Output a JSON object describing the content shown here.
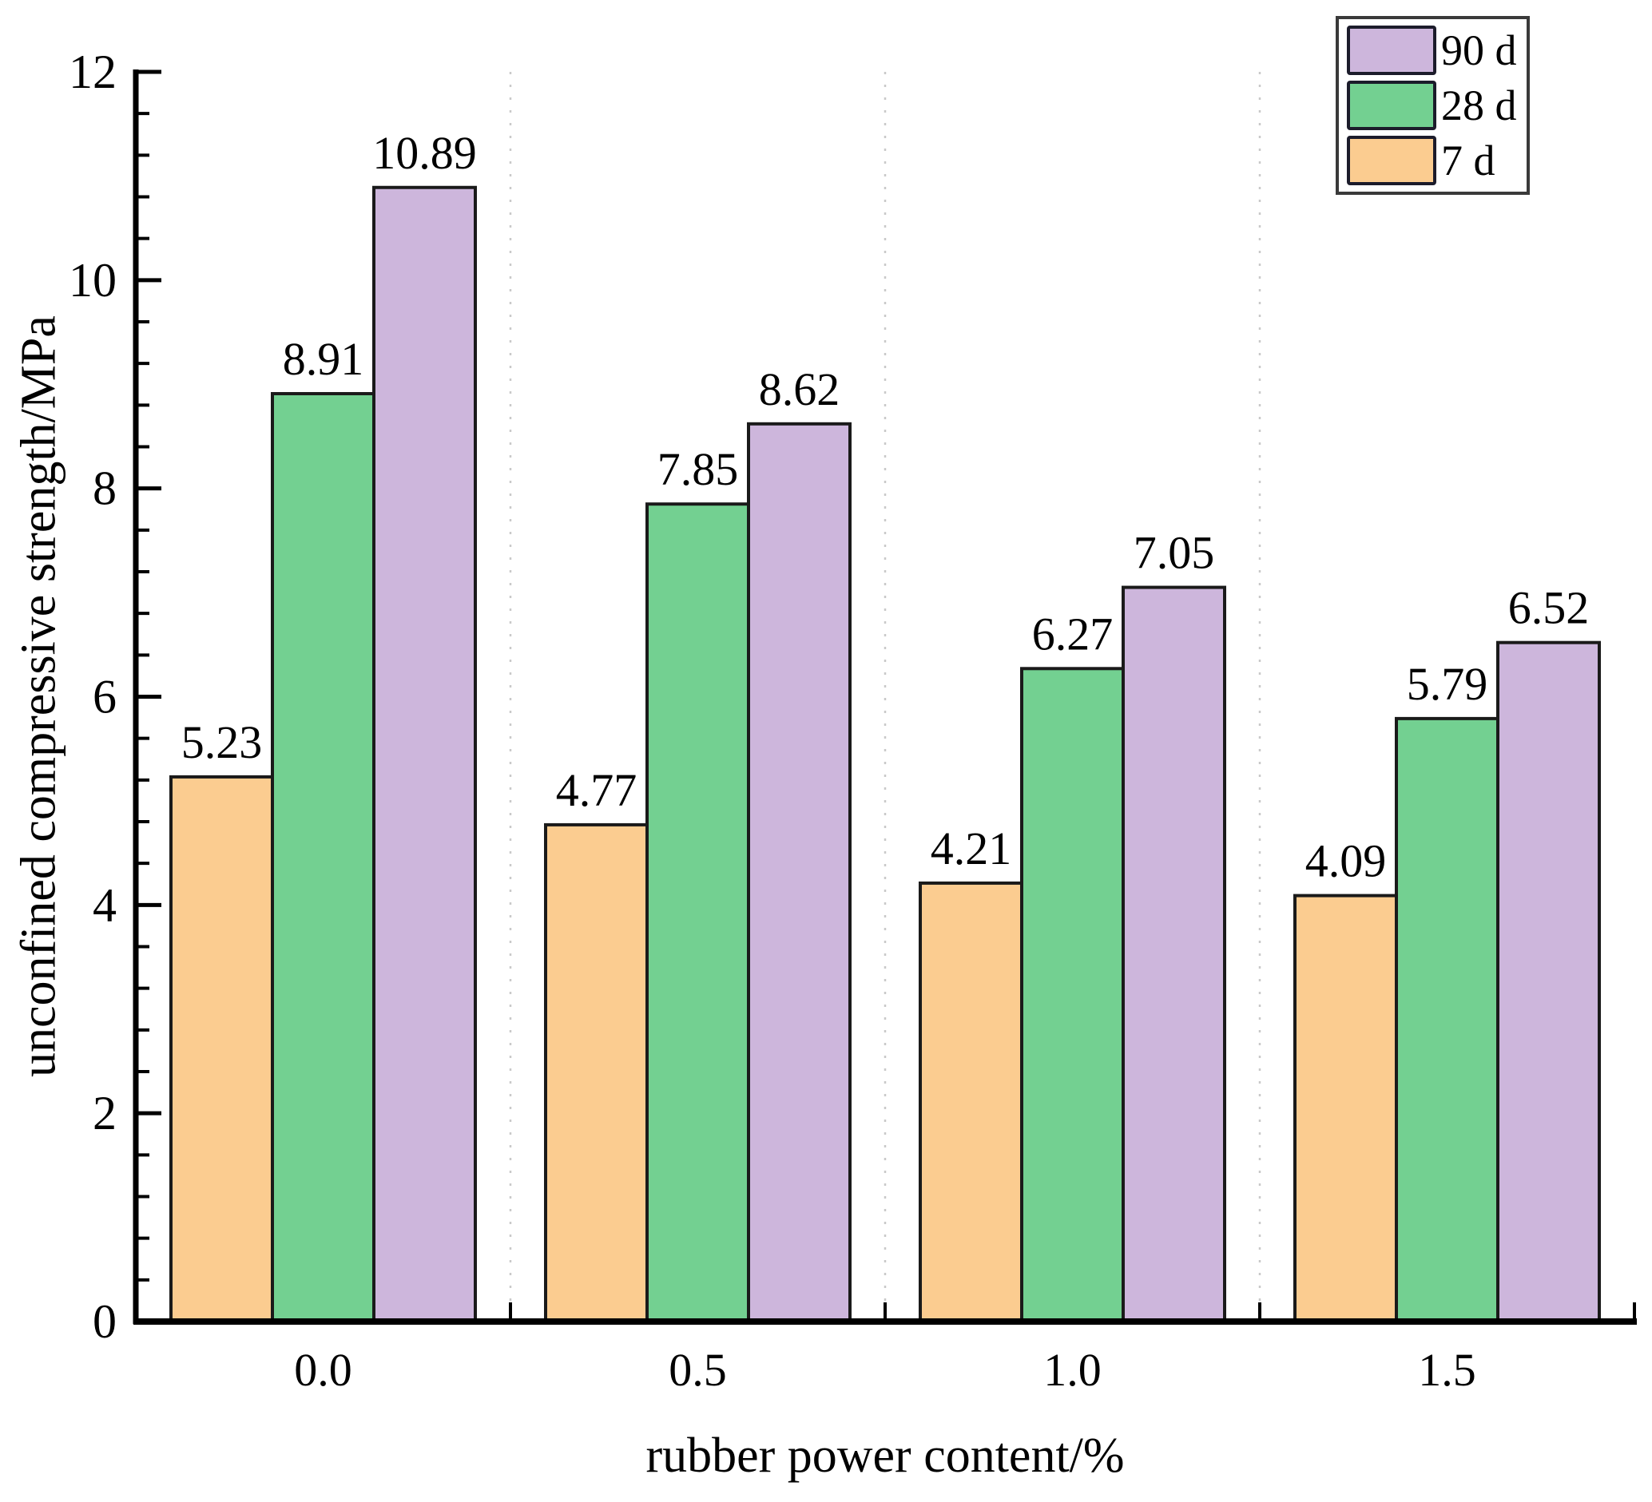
{
  "figure": {
    "background": "#ffffff",
    "text_color": "#000000"
  },
  "chart_data": {
    "type": "bar",
    "title": "",
    "xlabel": "rubber power content/%",
    "ylabel": "unconfined compressive strength/MPa",
    "categories": [
      "0.0",
      "0.5",
      "1.0",
      "1.5"
    ],
    "series": [
      {
        "name": "7 d",
        "color": "#FBCC90",
        "values": [
          5.23,
          4.77,
          4.21,
          4.09
        ]
      },
      {
        "name": "28 d",
        "color": "#73D091",
        "values": [
          8.91,
          7.85,
          6.27,
          5.79
        ]
      },
      {
        "name": "90 d",
        "color": "#CDB6DC",
        "values": [
          10.89,
          8.62,
          7.05,
          6.52
        ]
      }
    ],
    "value_labels": [
      "5.23",
      "8.91",
      "10.89",
      "4.77",
      "7.85",
      "8.62",
      "4.21",
      "6.27",
      "7.05",
      "4.09",
      "5.79",
      "6.52"
    ],
    "ylim": [
      0,
      12
    ],
    "y_major_step": 2,
    "y_minor_step": 0.4,
    "y_tick_labels": [
      "0",
      "2",
      "4",
      "6",
      "8",
      "10",
      "12"
    ],
    "legend": {
      "position": "top-right",
      "entries_top_to_bottom": [
        "90 d",
        "28 d",
        "7 d"
      ]
    },
    "grid": "dotted vertical separators between groups",
    "bar_edge_color": "#1a1a1a",
    "separator_color": "#c9c9c9",
    "axis_color": "#000000"
  }
}
